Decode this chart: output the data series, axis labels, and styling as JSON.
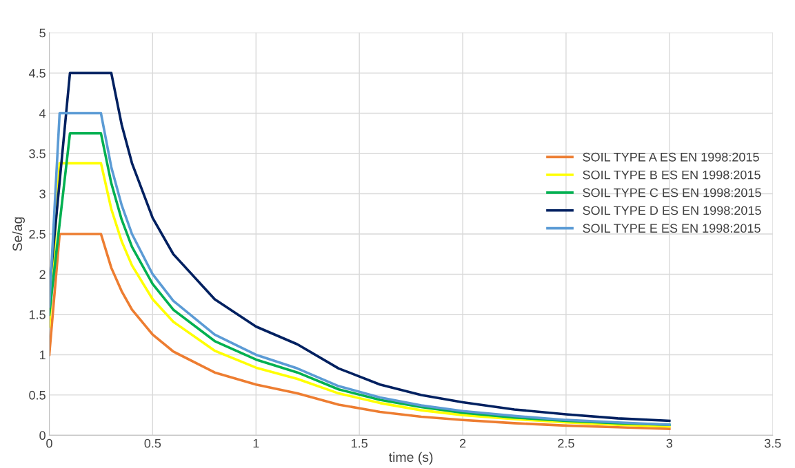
{
  "chart_data": {
    "type": "line",
    "xlabel": "time (s)",
    "ylabel": "Se/ag",
    "x": [
      0,
      0.05,
      0.1,
      0.15,
      0.2,
      0.25,
      0.3,
      0.35,
      0.4,
      0.5,
      0.6,
      0.8,
      1.0,
      1.2,
      1.4,
      1.6,
      1.8,
      2.0,
      2.25,
      2.5,
      2.75,
      3.0
    ],
    "series": [
      {
        "name": "SOIL TYPE A ES EN 1998:2015",
        "color": "#ed7d31",
        "values": [
          1.0,
          2.5,
          2.5,
          2.5,
          2.5,
          2.5,
          2.08,
          1.79,
          1.56,
          1.25,
          1.04,
          0.78,
          0.63,
          0.52,
          0.38,
          0.29,
          0.23,
          0.19,
          0.15,
          0.12,
          0.1,
          0.08
        ]
      },
      {
        "name": "SOIL TYPE B ES EN 1998:2015",
        "color": "#ffff00",
        "values": [
          1.35,
          3.38,
          3.38,
          3.38,
          3.38,
          3.38,
          2.81,
          2.41,
          2.11,
          1.69,
          1.41,
          1.05,
          0.84,
          0.7,
          0.52,
          0.4,
          0.31,
          0.25,
          0.2,
          0.16,
          0.13,
          0.11
        ]
      },
      {
        "name": "SOIL TYPE C ES EN 1998:2015",
        "color": "#00b050",
        "values": [
          1.5,
          2.63,
          3.75,
          3.75,
          3.75,
          3.75,
          3.13,
          2.68,
          2.34,
          1.88,
          1.56,
          1.17,
          0.94,
          0.78,
          0.57,
          0.44,
          0.35,
          0.28,
          0.22,
          0.18,
          0.15,
          0.13
        ]
      },
      {
        "name": "SOIL TYPE D ES EN 1998:2015",
        "color": "#002060",
        "values": [
          1.8,
          3.15,
          4.5,
          4.5,
          4.5,
          4.5,
          4.5,
          3.86,
          3.38,
          2.7,
          2.25,
          1.69,
          1.35,
          1.13,
          0.83,
          0.63,
          0.5,
          0.41,
          0.32,
          0.26,
          0.21,
          0.18
        ]
      },
      {
        "name": "SOIL TYPE E ES EN 1998:2015",
        "color": "#5b9bd5",
        "values": [
          1.6,
          4.0,
          4.0,
          4.0,
          4.0,
          4.0,
          3.33,
          2.86,
          2.5,
          2.0,
          1.67,
          1.25,
          1.0,
          0.83,
          0.61,
          0.47,
          0.37,
          0.3,
          0.24,
          0.19,
          0.16,
          0.13
        ]
      }
    ],
    "xlim": [
      0,
      3.5
    ],
    "xticks": [
      0,
      0.5,
      1,
      1.5,
      2,
      2.5,
      3,
      3.5
    ],
    "ylim": [
      0,
      5
    ],
    "yticks": [
      0,
      0.5,
      1,
      1.5,
      2,
      2.5,
      3,
      3.5,
      4,
      4.5,
      5
    ],
    "grid": true,
    "legend": "right",
    "marker": "none",
    "line_style": "solid"
  }
}
